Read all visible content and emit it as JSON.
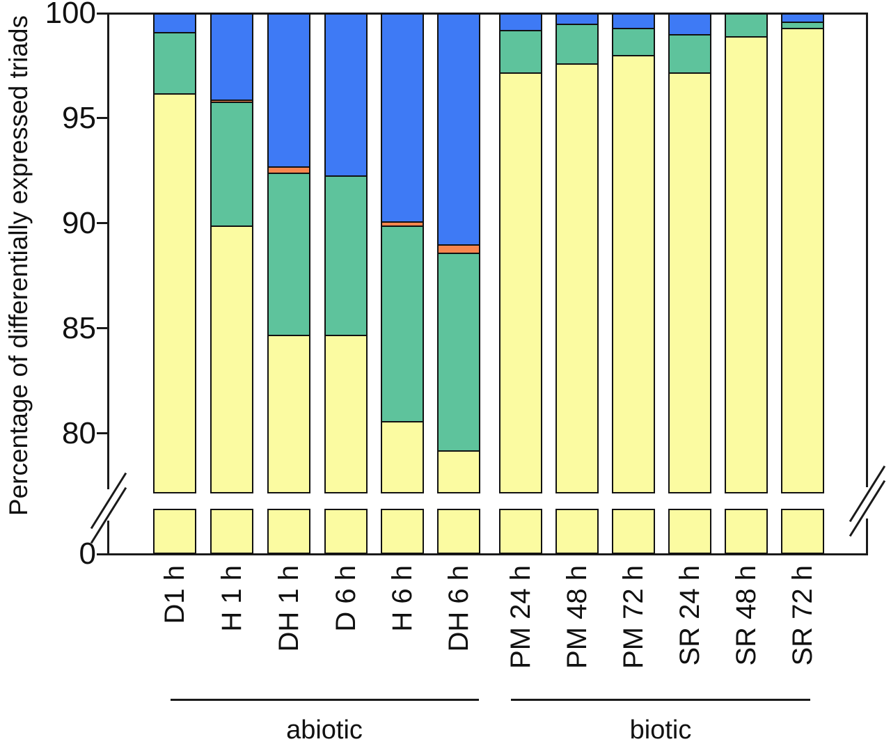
{
  "figure": {
    "y_axis_label": "Percentage of differentially expressed triads",
    "y_tick_labels": [
      "100",
      "95",
      "90",
      "85",
      "80",
      "0"
    ],
    "group_labels": {
      "abiotic": "abiotic",
      "biotic": "biotic"
    }
  },
  "chart_data": {
    "type": "bar",
    "stacked": true,
    "orientation": "vertical",
    "title": "",
    "xlabel": "",
    "ylabel": "Percentage of differentially expressed triads",
    "legend_position": "none",
    "grid": false,
    "y_axis": {
      "ticks": [
        0,
        80,
        85,
        90,
        95,
        100
      ],
      "upper_panel_range": [
        77.15,
        100
      ],
      "axis_break": true,
      "break_location_between": [
        0,
        77
      ]
    },
    "categories": [
      "D1 h",
      "H 1 h",
      "DH 1 h",
      "D 6 h",
      "H 6 h",
      "DH 6 h",
      "PM 24 h",
      "PM 48 h",
      "PM 72 h",
      "SR 24 h",
      "SR 48 h",
      "SR 72 h"
    ],
    "category_groups": [
      {
        "label": "abiotic",
        "categories": [
          "D1 h",
          "H 1 h",
          "DH 1 h",
          "D 6 h",
          "H 6 h",
          "DH 6 h"
        ]
      },
      {
        "label": "biotic",
        "categories": [
          "PM 24 h",
          "PM 48 h",
          "PM 72 h",
          "SR 24 h",
          "SR 48 h",
          "SR 72 h"
        ]
      }
    ],
    "series": [
      {
        "name": "yellow",
        "color": "#FBFBA1",
        "values": [
          96.2,
          89.9,
          84.7,
          84.7,
          80.6,
          79.2,
          97.2,
          97.6,
          98.0,
          97.2,
          98.9,
          99.3
        ]
      },
      {
        "name": "green",
        "color": "#5EC39C",
        "values": [
          2.9,
          5.9,
          7.7,
          7.6,
          9.3,
          9.4,
          2.0,
          1.9,
          1.3,
          1.8,
          1.1,
          0.3
        ]
      },
      {
        "name": "orange",
        "color": "#F6864E",
        "values": [
          0,
          0.1,
          0.3,
          0,
          0.2,
          0.4,
          0,
          0,
          0,
          0,
          0,
          0
        ]
      },
      {
        "name": "blue",
        "color": "#3E7AF5",
        "values": [
          0.9,
          4.1,
          7.3,
          7.7,
          9.9,
          11.0,
          0.8,
          0.5,
          0.7,
          1.0,
          0,
          0.4
        ]
      }
    ],
    "colors": {
      "bar_border": "#111111",
      "axis": "#1a1a1a",
      "background": "#ffffff"
    }
  }
}
